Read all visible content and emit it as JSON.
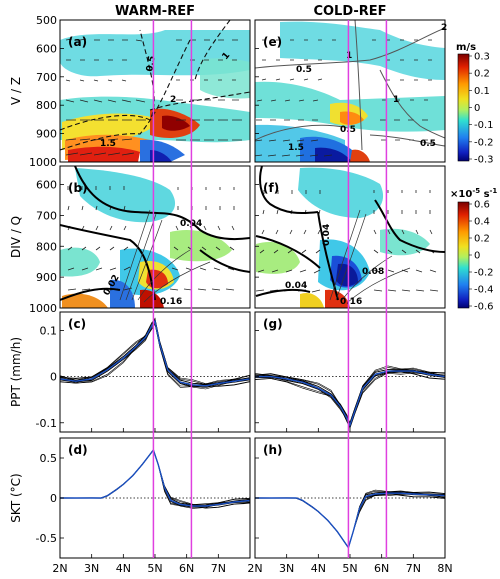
{
  "columns": [
    "WARM-REF",
    "COLD-REF"
  ],
  "row_labels": [
    "V / Z",
    "DIV / Q",
    "PPT (mm/h)",
    "SKT (°C)"
  ],
  "panel_letters": [
    "(a)",
    "(b)",
    "(c)",
    "(d)",
    "(e)",
    "(f)",
    "(g)",
    "(h)"
  ],
  "x_ticks": [
    "2N",
    "3N",
    "4N",
    "5N",
    "6N",
    "7N",
    "8N"
  ],
  "pressure_ticks_top": [
    "500",
    "600",
    "700",
    "800",
    "900",
    "1000"
  ],
  "pressure_ticks_mid": [
    "600",
    "700",
    "800",
    "900",
    "1000"
  ],
  "colorbars": [
    {
      "unit": "m/s",
      "ticks": [
        "0.3",
        "0.2",
        "0.1",
        "0",
        "-0.1",
        "-0.2",
        "-0.3"
      ]
    },
    {
      "unit_prefix": "×",
      "unit": "10",
      "unit_exp": "-5",
      "unit_tail": " s",
      "unit_tail_exp": "-1",
      "ticks": [
        "0.6",
        "0.4",
        "0.2",
        "0",
        "-0.2",
        "-0.4",
        "-0.6"
      ]
    }
  ],
  "contour_labels": {
    "a": [
      "0.5",
      "1",
      "2",
      "1.5"
    ],
    "e": [
      "0.5",
      "1",
      "1",
      "2",
      "0.5",
      "0.5",
      "1.5"
    ],
    "b": [
      "0.04",
      "0.02",
      "0.16"
    ],
    "f": [
      "0.04",
      "0.04",
      "0.08",
      "0.16"
    ]
  },
  "markers": [
    4.95,
    6.15
  ],
  "colors": {
    "marker": "#e040e0",
    "mean_line": "#1a4fc0",
    "member_line": "#000000"
  },
  "chart_data": [
    {
      "type": "line",
      "panel": "c",
      "ylabel": "PPT (mm/h)",
      "y_ticks": [
        "0.1",
        "0",
        "-0.1"
      ],
      "ylim": [
        -0.12,
        0.14
      ],
      "xlim": [
        2,
        8
      ],
      "x": [
        2.0,
        2.5,
        3.0,
        3.5,
        4.0,
        4.4,
        4.7,
        4.9,
        5.0,
        5.15,
        5.4,
        5.8,
        6.2,
        6.6,
        7.0,
        7.5,
        8.0
      ],
      "series": [
        {
          "values": [
            -0.005,
            -0.01,
            -0.005,
            0.015,
            0.04,
            0.065,
            0.085,
            0.11,
            0.12,
            0.07,
            0.015,
            -0.012,
            -0.018,
            -0.02,
            -0.015,
            -0.01,
            -0.005
          ]
        }
      ]
    },
    {
      "type": "line",
      "panel": "g",
      "y_ticks": [
        "0.1",
        "0",
        "-0.1"
      ],
      "ylim": [
        -0.12,
        0.14
      ],
      "xlim": [
        2,
        8
      ],
      "x": [
        2.0,
        2.5,
        3.0,
        3.5,
        4.0,
        4.4,
        4.7,
        4.9,
        5.0,
        5.15,
        5.4,
        5.8,
        6.2,
        6.6,
        7.0,
        7.5,
        8.0
      ],
      "series": [
        {
          "values": [
            0.0,
            0.0,
            -0.005,
            -0.012,
            -0.025,
            -0.04,
            -0.065,
            -0.09,
            -0.105,
            -0.075,
            -0.025,
            0.005,
            0.012,
            0.012,
            0.012,
            0.005,
            0.0
          ]
        }
      ]
    },
    {
      "type": "line",
      "panel": "d",
      "ylabel": "SKT (°C)",
      "y_ticks": [
        "0.5",
        "0",
        "-0.5"
      ],
      "ylim": [
        -0.75,
        0.75
      ],
      "xlim": [
        2,
        8
      ],
      "x": [
        2.0,
        3.0,
        3.3,
        3.5,
        3.8,
        4.0,
        4.3,
        4.6,
        4.95,
        5.1,
        5.3,
        5.5,
        5.8,
        6.2,
        6.6,
        7.0,
        7.5,
        8.0
      ],
      "series": [
        {
          "values": [
            0.0,
            0.0,
            0.0,
            0.03,
            0.11,
            0.17,
            0.28,
            0.42,
            0.6,
            0.42,
            0.13,
            -0.03,
            -0.08,
            -0.1,
            -0.1,
            -0.08,
            -0.05,
            -0.03
          ]
        }
      ]
    },
    {
      "type": "line",
      "panel": "h",
      "y_ticks": [
        "0.5",
        "0",
        "-0.5"
      ],
      "ylim": [
        -0.75,
        0.75
      ],
      "xlim": [
        2,
        8
      ],
      "x": [
        2.0,
        3.0,
        3.3,
        3.5,
        3.8,
        4.0,
        4.3,
        4.6,
        4.95,
        5.1,
        5.3,
        5.5,
        5.8,
        6.2,
        6.6,
        7.0,
        7.5,
        8.0
      ],
      "series": [
        {
          "values": [
            0.0,
            0.0,
            0.0,
            -0.03,
            -0.11,
            -0.17,
            -0.28,
            -0.42,
            -0.62,
            -0.42,
            -0.13,
            0.02,
            0.05,
            0.06,
            0.06,
            0.05,
            0.04,
            0.03
          ]
        }
      ]
    }
  ]
}
